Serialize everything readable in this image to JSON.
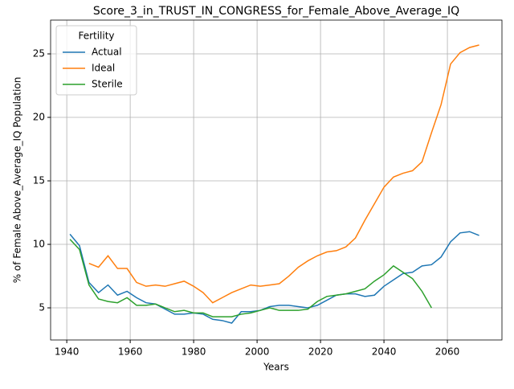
{
  "chart_data": {
    "type": "line",
    "title": "Score_3_in_TRUST_IN_CONGRESS_for_Female_Above_Average_IQ",
    "x_label": "Years",
    "y_label": "% of Female Above_Average_IQ Population",
    "legend_title": "Fertility",
    "legend_position": "upper left",
    "grid": true,
    "x": [
      1941,
      1944,
      1947,
      1950,
      1953,
      1956,
      1959,
      1962,
      1965,
      1968,
      1971,
      1974,
      1977,
      1980,
      1983,
      1986,
      1989,
      1992,
      1995,
      1998,
      2001,
      2004,
      2007,
      2010,
      2013,
      2016,
      2019,
      2022,
      2025,
      2028,
      2031,
      2034,
      2037,
      2040,
      2043,
      2046,
      2049,
      2052,
      2055,
      2058,
      2061,
      2064,
      2067,
      2070
    ],
    "xlim": [
      1934.9,
      2077.2
    ],
    "xticks": [
      1940,
      1960,
      1980,
      2000,
      2020,
      2040,
      2060
    ],
    "ylim": [
      2.47,
      27.66
    ],
    "yticks": [
      5,
      10,
      15,
      20,
      25
    ],
    "series": [
      {
        "name": "Actual",
        "color": "#1f77b4",
        "values": [
          10.8,
          9.9,
          7.0,
          6.2,
          6.8,
          6.0,
          6.3,
          5.8,
          5.4,
          5.3,
          4.9,
          4.5,
          4.5,
          4.6,
          4.5,
          4.1,
          4.0,
          3.8,
          4.7,
          4.7,
          4.8,
          5.1,
          5.2,
          5.2,
          5.1,
          5.0,
          5.2,
          5.6,
          6.0,
          6.1,
          6.1,
          5.9,
          6.0,
          6.7,
          7.2,
          7.7,
          7.8,
          8.3,
          8.4,
          9.0,
          10.2,
          10.9,
          11.0,
          10.7
        ]
      },
      {
        "name": "Ideal",
        "color": "#ff7f0e",
        "values": [
          null,
          null,
          8.5,
          8.2,
          9.1,
          8.1,
          8.1,
          7.0,
          6.7,
          6.8,
          6.7,
          6.9,
          7.1,
          6.7,
          6.2,
          5.4,
          5.8,
          6.2,
          6.5,
          6.8,
          6.7,
          6.8,
          6.9,
          7.5,
          8.2,
          8.7,
          9.1,
          9.4,
          9.5,
          9.8,
          10.5,
          11.9,
          13.2,
          14.5,
          15.3,
          15.6,
          15.8,
          16.5,
          18.8,
          21.0,
          24.2,
          25.1,
          25.5,
          25.7
        ]
      },
      {
        "name": "Sterile",
        "color": "#2ca02c",
        "values": [
          10.4,
          9.6,
          6.8,
          5.7,
          5.5,
          5.4,
          5.8,
          5.2,
          5.2,
          5.3,
          5.0,
          4.7,
          4.8,
          4.6,
          4.6,
          4.3,
          4.3,
          4.3,
          4.5,
          4.6,
          4.8,
          5.0,
          4.8,
          4.8,
          4.8,
          4.9,
          5.5,
          5.9,
          6.0,
          6.1,
          6.3,
          6.5,
          7.1,
          7.6,
          8.3,
          7.8,
          7.3,
          6.3,
          5.0,
          null,
          null,
          null,
          null,
          null
        ]
      }
    ]
  }
}
